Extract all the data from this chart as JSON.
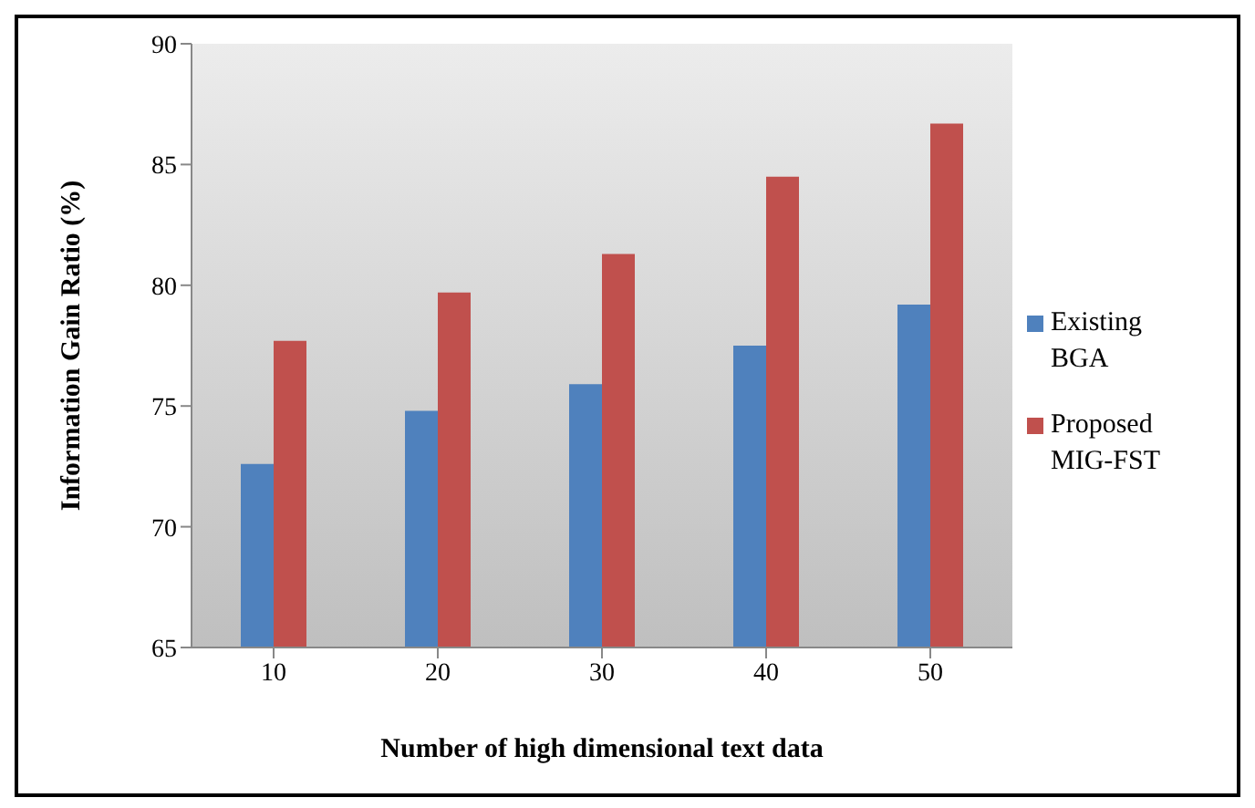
{
  "chart_data": {
    "type": "bar",
    "xlabel": "Number of high dimensional text data",
    "ylabel": "Information Gain Ratio (%)",
    "categories": [
      "10",
      "20",
      "30",
      "40",
      "50"
    ],
    "series": [
      {
        "name": "Existing BGA",
        "color": "#4f81bd",
        "values": [
          72.6,
          74.8,
          75.9,
          77.5,
          79.2
        ]
      },
      {
        "name": "Proposed MIG-FST",
        "color": "#c0504d",
        "values": [
          77.7,
          79.7,
          81.3,
          84.5,
          86.7
        ]
      }
    ],
    "ylim": [
      65,
      90
    ],
    "yticks": [
      65,
      70,
      75,
      80,
      85,
      90
    ],
    "grid": false,
    "legend": "right"
  }
}
